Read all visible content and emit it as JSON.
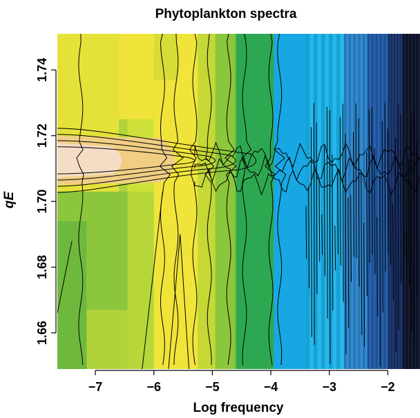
{
  "chart_data": {
    "type": "heatmap",
    "title": "Phytoplankton spectra",
    "xlabel": "Log frequency",
    "ylabel": "qE",
    "xlim": [
      -7.65,
      -1.45
    ],
    "ylim": [
      1.649,
      1.751
    ],
    "x_ticks": [
      -7,
      -6,
      -5,
      -4,
      -3,
      -2
    ],
    "x_tick_labels": [
      "−7",
      "−6",
      "−5",
      "−4",
      "−3",
      "−2"
    ],
    "y_ticks": [
      1.66,
      1.68,
      1.7,
      1.72,
      1.74
    ],
    "y_tick_labels": [
      "1.66",
      "1.68",
      "1.70",
      "1.72",
      "1.74"
    ],
    "color_scale": [
      "#f5dcc4",
      "#f0ce84",
      "#f0e43a",
      "#c4d836",
      "#8cc63c",
      "#2ea850",
      "#17a060",
      "#14a6d8",
      "#1ab4ec",
      "#2a84cc",
      "#1e5aa8",
      "#16306a",
      "#0c1228"
    ],
    "x_color_bands": [
      {
        "x0": -7.65,
        "x1": -7.15,
        "color": "#8cc63c"
      },
      {
        "x0": -7.15,
        "x1": -6.45,
        "color": "#b0d23a"
      },
      {
        "x0": -6.45,
        "x1": -6.0,
        "color": "#cde13a"
      },
      {
        "x0": -6.0,
        "x1": -5.25,
        "color": "#f0e43a"
      },
      {
        "x0": -5.25,
        "x1": -4.95,
        "color": "#c4d836"
      },
      {
        "x0": -4.95,
        "x1": -4.6,
        "color": "#8cc63c"
      },
      {
        "x0": -4.6,
        "x1": -3.95,
        "color": "#2ea850"
      },
      {
        "x0": -3.95,
        "x1": -3.4,
        "color": "#17a8e4"
      },
      {
        "x0": -3.4,
        "x1": -2.75,
        "color": "#1ab4ec"
      },
      {
        "x0": -2.75,
        "x1": -2.35,
        "color": "#2a84cc"
      },
      {
        "x0": -2.35,
        "x1": -2.0,
        "color": "#1e5aa8"
      },
      {
        "x0": -2.0,
        "x1": -1.75,
        "color": "#16306a"
      },
      {
        "x0": -1.75,
        "x1": -1.45,
        "color": "#0c1228"
      }
    ],
    "high_region": {
      "x_range": [
        -7.65,
        -5.4
      ],
      "y_center": 1.7125,
      "y_half_width": 0.0075
    },
    "contour_levels_shown": 12
  }
}
